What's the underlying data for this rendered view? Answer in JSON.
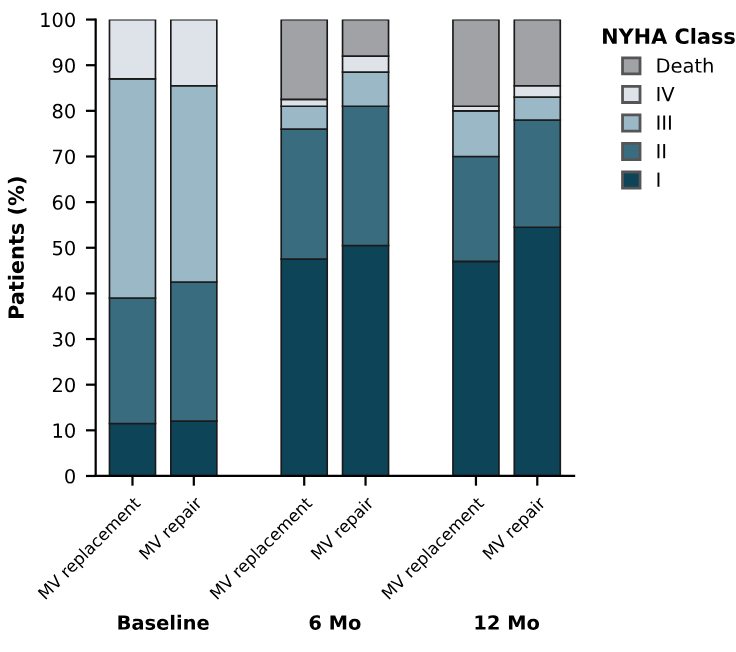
{
  "chart_data": {
    "type": "bar",
    "stacked": true,
    "ylabel": "Patients (%)",
    "legend_title": "NYHA Class",
    "legend": "right",
    "categories": [
      "MV replacement",
      "MV repair",
      "MV replacement",
      "MV repair",
      "MV replacement",
      "MV repair"
    ],
    "series": [
      {
        "name": "I",
        "color": "#0d4458",
        "values": [
          11.5,
          12,
          47.5,
          50.5,
          47,
          54.5
        ]
      },
      {
        "name": "II",
        "color": "#3a6c80",
        "values": [
          27.5,
          30.5,
          28.5,
          30.5,
          23,
          23.5
        ]
      },
      {
        "name": "III",
        "color": "#9ab8c6",
        "values": [
          48,
          43,
          5,
          7.5,
          10,
          5
        ]
      },
      {
        "name": "IV",
        "color": "#dde3e8",
        "values": [
          13,
          14.5,
          1.5,
          3.5,
          1,
          2.5
        ]
      },
      {
        "name": "Death",
        "color": "#a0a2a6",
        "values": [
          null,
          null,
          17.5,
          8,
          19,
          14.5
        ]
      }
    ],
    "annotations": [
      "Baseline",
      "6 Mo",
      "12 Mo"
    ],
    "ylim": [
      0,
      100
    ],
    "yticks": [
      0,
      10,
      20,
      30,
      40,
      50,
      60,
      70,
      80,
      90,
      100
    ],
    "grid": false
  }
}
